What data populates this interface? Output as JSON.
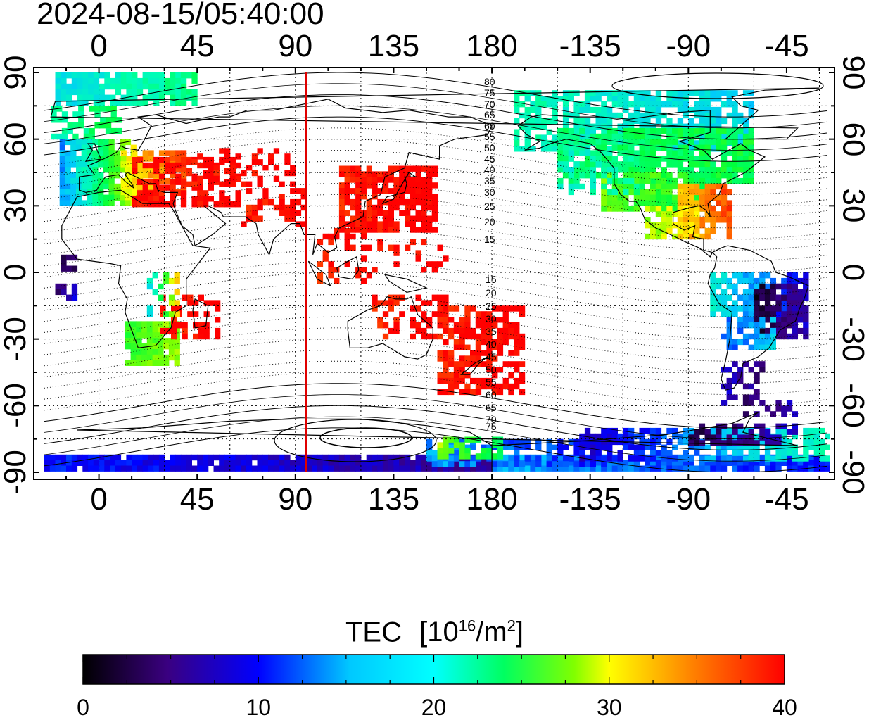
{
  "timestamp": "2024-08-15/05:40:00",
  "x_ticks_top": [
    "0",
    "45",
    "90",
    "135",
    "180",
    "-135",
    "-90",
    "-45"
  ],
  "x_ticks_bottom": [
    "0",
    "45",
    "90",
    "135",
    "180",
    "-135",
    "-90",
    "-45"
  ],
  "y_ticks_left": [
    "90",
    "60",
    "30",
    "0",
    "-30",
    "-60",
    "-90"
  ],
  "y_ticks_right": [
    "90",
    "60",
    "30",
    "0",
    "-30",
    "-60",
    "-90"
  ],
  "contour_labels_north": [
    "80",
    "75",
    "70",
    "65",
    "60",
    "55",
    "50",
    "45",
    "40",
    "35",
    "30",
    "25",
    "20",
    "15"
  ],
  "contour_labels_south": [
    "15",
    "20",
    "25",
    "30",
    "35",
    "40",
    "45",
    "50",
    "55",
    "60",
    "65",
    "70",
    "75"
  ],
  "colorbar": {
    "title": "TEC",
    "unit_base": "[10",
    "unit_exp": "16",
    "unit_mid": "/m",
    "unit_exp2": "2",
    "unit_close": "]",
    "ticks": [
      "0",
      "10",
      "20",
      "30",
      "40"
    ],
    "range": [
      0,
      40
    ]
  },
  "terminator_longitude": 95,
  "colors": {
    "terminator": "#e00000",
    "scale": [
      "#000000",
      "#3a0080",
      "#0000ff",
      "#00ffff",
      "#00ff00",
      "#ffff00",
      "#ff8000",
      "#ff0000"
    ]
  }
}
